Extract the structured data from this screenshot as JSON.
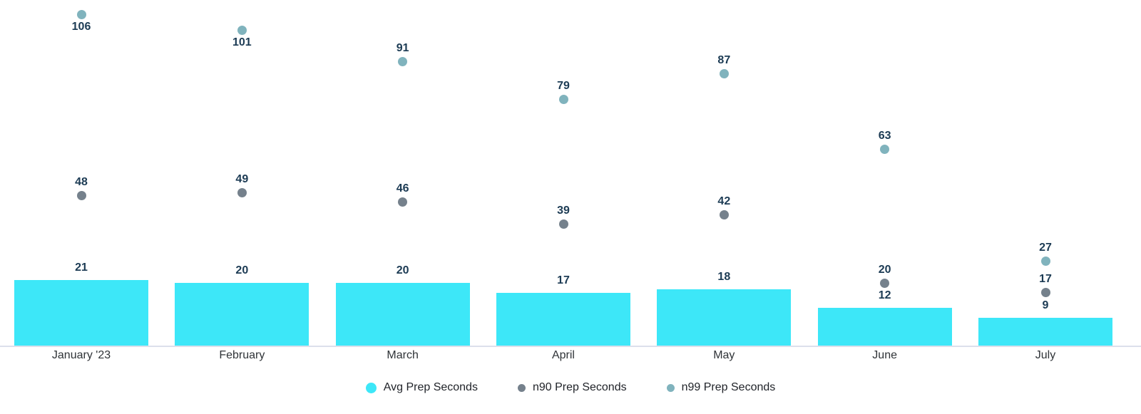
{
  "chart_data": {
    "type": "bar",
    "subtype": "combo-bar-with-points",
    "categories": [
      "January '23",
      "February",
      "March",
      "April",
      "May",
      "June",
      "July"
    ],
    "series": [
      {
        "name": "Avg Prep Seconds",
        "render": "bar",
        "color": "#3DE7F8",
        "values": [
          21,
          20,
          20,
          17,
          18,
          12,
          9
        ]
      },
      {
        "name": "n90 Prep Seconds",
        "render": "point",
        "color": "#75818C",
        "values": [
          48,
          49,
          46,
          39,
          42,
          20,
          17
        ]
      },
      {
        "name": "n99 Prep Seconds",
        "render": "point",
        "color": "#80B3BD",
        "values": [
          106,
          101,
          91,
          79,
          87,
          63,
          27
        ]
      }
    ],
    "title": "",
    "xlabel": "",
    "ylabel": "",
    "ylim": [
      0,
      111
    ],
    "grid": false,
    "legend_position": "bottom",
    "data_labels_visible": true,
    "data_label_color": "#1C3B54",
    "axis_label_color": "#2F3337",
    "axis_line_color": "#DCE0EB",
    "background_color": "#FFFFFF"
  },
  "legend": {
    "items": [
      {
        "label": "Avg Prep Seconds",
        "color": "#3DE7F8",
        "marker": "circle-large"
      },
      {
        "label": "n90 Prep Seconds",
        "color": "#75818C",
        "marker": "circle-small"
      },
      {
        "label": "n99 Prep Seconds",
        "color": "#80B3BD",
        "marker": "circle-small"
      }
    ]
  }
}
